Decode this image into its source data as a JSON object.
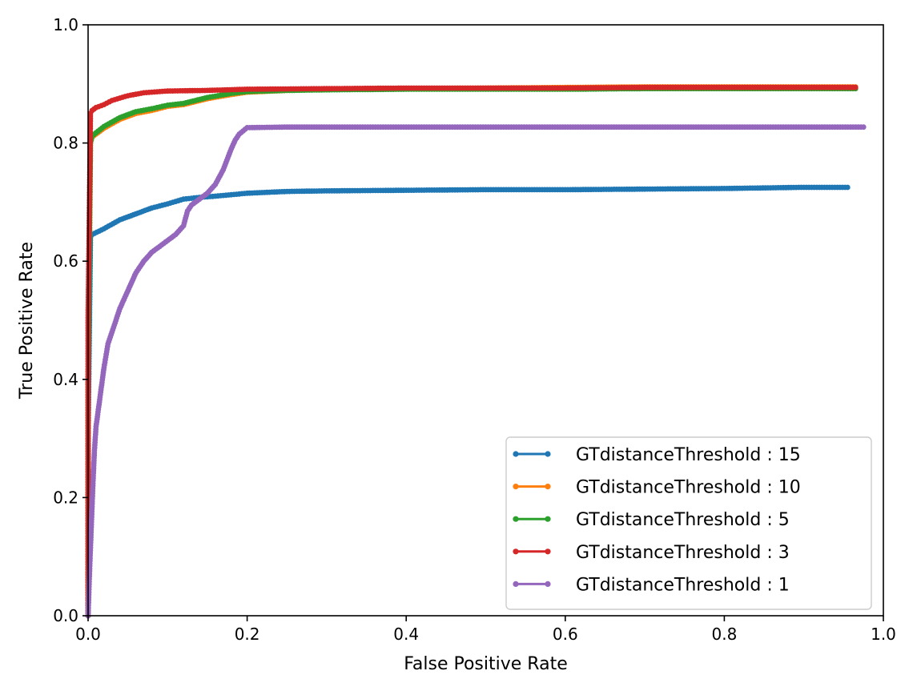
{
  "chart_data": {
    "type": "line",
    "title": "",
    "xlabel": "False Positive Rate",
    "ylabel": "True Positive Rate",
    "xlim": [
      0.0,
      1.0
    ],
    "ylim": [
      0.0,
      1.0
    ],
    "xticks": [
      "0.0",
      "0.2",
      "0.4",
      "0.6",
      "0.8",
      "1.0"
    ],
    "yticks": [
      "0.0",
      "0.2",
      "0.4",
      "0.6",
      "0.8",
      "1.0"
    ],
    "grid": false,
    "legend_position": "lower-right",
    "series": [
      {
        "name": "GTdistanceThreshold : 15",
        "color": "#1f77b4",
        "x": [
          0.0,
          0.0,
          0.003,
          0.005,
          0.02,
          0.04,
          0.06,
          0.08,
          0.1,
          0.12,
          0.14,
          0.16,
          0.2,
          0.25,
          0.3,
          0.4,
          0.5,
          0.6,
          0.7,
          0.8,
          0.9,
          0.955
        ],
        "y": [
          0.0,
          0.3,
          0.64,
          0.645,
          0.655,
          0.67,
          0.68,
          0.69,
          0.697,
          0.705,
          0.708,
          0.71,
          0.715,
          0.718,
          0.719,
          0.72,
          0.721,
          0.721,
          0.722,
          0.723,
          0.725,
          0.725
        ]
      },
      {
        "name": "GTdistanceThreshold : 10",
        "color": "#ff7f0e",
        "x": [
          0.0,
          0.0,
          0.003,
          0.005,
          0.02,
          0.04,
          0.06,
          0.08,
          0.1,
          0.12,
          0.15,
          0.18,
          0.2,
          0.25,
          0.3,
          0.4,
          0.5,
          0.6,
          0.7,
          0.8,
          0.9,
          0.965
        ],
        "y": [
          0.0,
          0.4,
          0.8,
          0.81,
          0.825,
          0.84,
          0.85,
          0.855,
          0.862,
          0.865,
          0.875,
          0.882,
          0.886,
          0.889,
          0.891,
          0.892,
          0.893,
          0.894,
          0.895,
          0.895,
          0.895,
          0.895
        ]
      },
      {
        "name": "GTdistanceThreshold : 5",
        "color": "#2ca02c",
        "x": [
          0.0,
          0.0,
          0.003,
          0.005,
          0.02,
          0.04,
          0.06,
          0.08,
          0.1,
          0.12,
          0.15,
          0.18,
          0.2,
          0.25,
          0.3,
          0.4,
          0.5,
          0.6,
          0.7,
          0.8,
          0.9,
          0.965
        ],
        "y": [
          0.0,
          0.4,
          0.8,
          0.812,
          0.828,
          0.843,
          0.853,
          0.858,
          0.864,
          0.867,
          0.877,
          0.884,
          0.887,
          0.889,
          0.89,
          0.891,
          0.891,
          0.891,
          0.892,
          0.892,
          0.892,
          0.892
        ]
      },
      {
        "name": "GTdistanceThreshold : 3",
        "color": "#d62728",
        "x": [
          0.0,
          0.0,
          0.003,
          0.005,
          0.01,
          0.02,
          0.03,
          0.05,
          0.07,
          0.1,
          0.15,
          0.2,
          0.3,
          0.4,
          0.5,
          0.6,
          0.7,
          0.8,
          0.9,
          0.965
        ],
        "y": [
          0.0,
          0.5,
          0.85,
          0.855,
          0.86,
          0.865,
          0.872,
          0.88,
          0.885,
          0.888,
          0.889,
          0.891,
          0.892,
          0.893,
          0.893,
          0.893,
          0.894,
          0.894,
          0.894,
          0.894
        ]
      },
      {
        "name": "GTdistanceThreshold : 1",
        "color": "#9467bd",
        "x": [
          0.0,
          0.002,
          0.004,
          0.006,
          0.008,
          0.01,
          0.015,
          0.02,
          0.025,
          0.03,
          0.04,
          0.05,
          0.06,
          0.07,
          0.08,
          0.09,
          0.1,
          0.11,
          0.12,
          0.125,
          0.13,
          0.14,
          0.15,
          0.16,
          0.17,
          0.18,
          0.185,
          0.19,
          0.2,
          0.25,
          0.3,
          0.4,
          0.5,
          0.6,
          0.7,
          0.8,
          0.9,
          0.975
        ],
        "y": [
          0.0,
          0.08,
          0.15,
          0.22,
          0.28,
          0.32,
          0.37,
          0.42,
          0.46,
          0.48,
          0.52,
          0.55,
          0.58,
          0.6,
          0.615,
          0.625,
          0.635,
          0.645,
          0.66,
          0.685,
          0.695,
          0.705,
          0.715,
          0.73,
          0.755,
          0.79,
          0.805,
          0.815,
          0.826,
          0.827,
          0.827,
          0.827,
          0.827,
          0.827,
          0.827,
          0.827,
          0.827,
          0.827
        ]
      }
    ]
  }
}
